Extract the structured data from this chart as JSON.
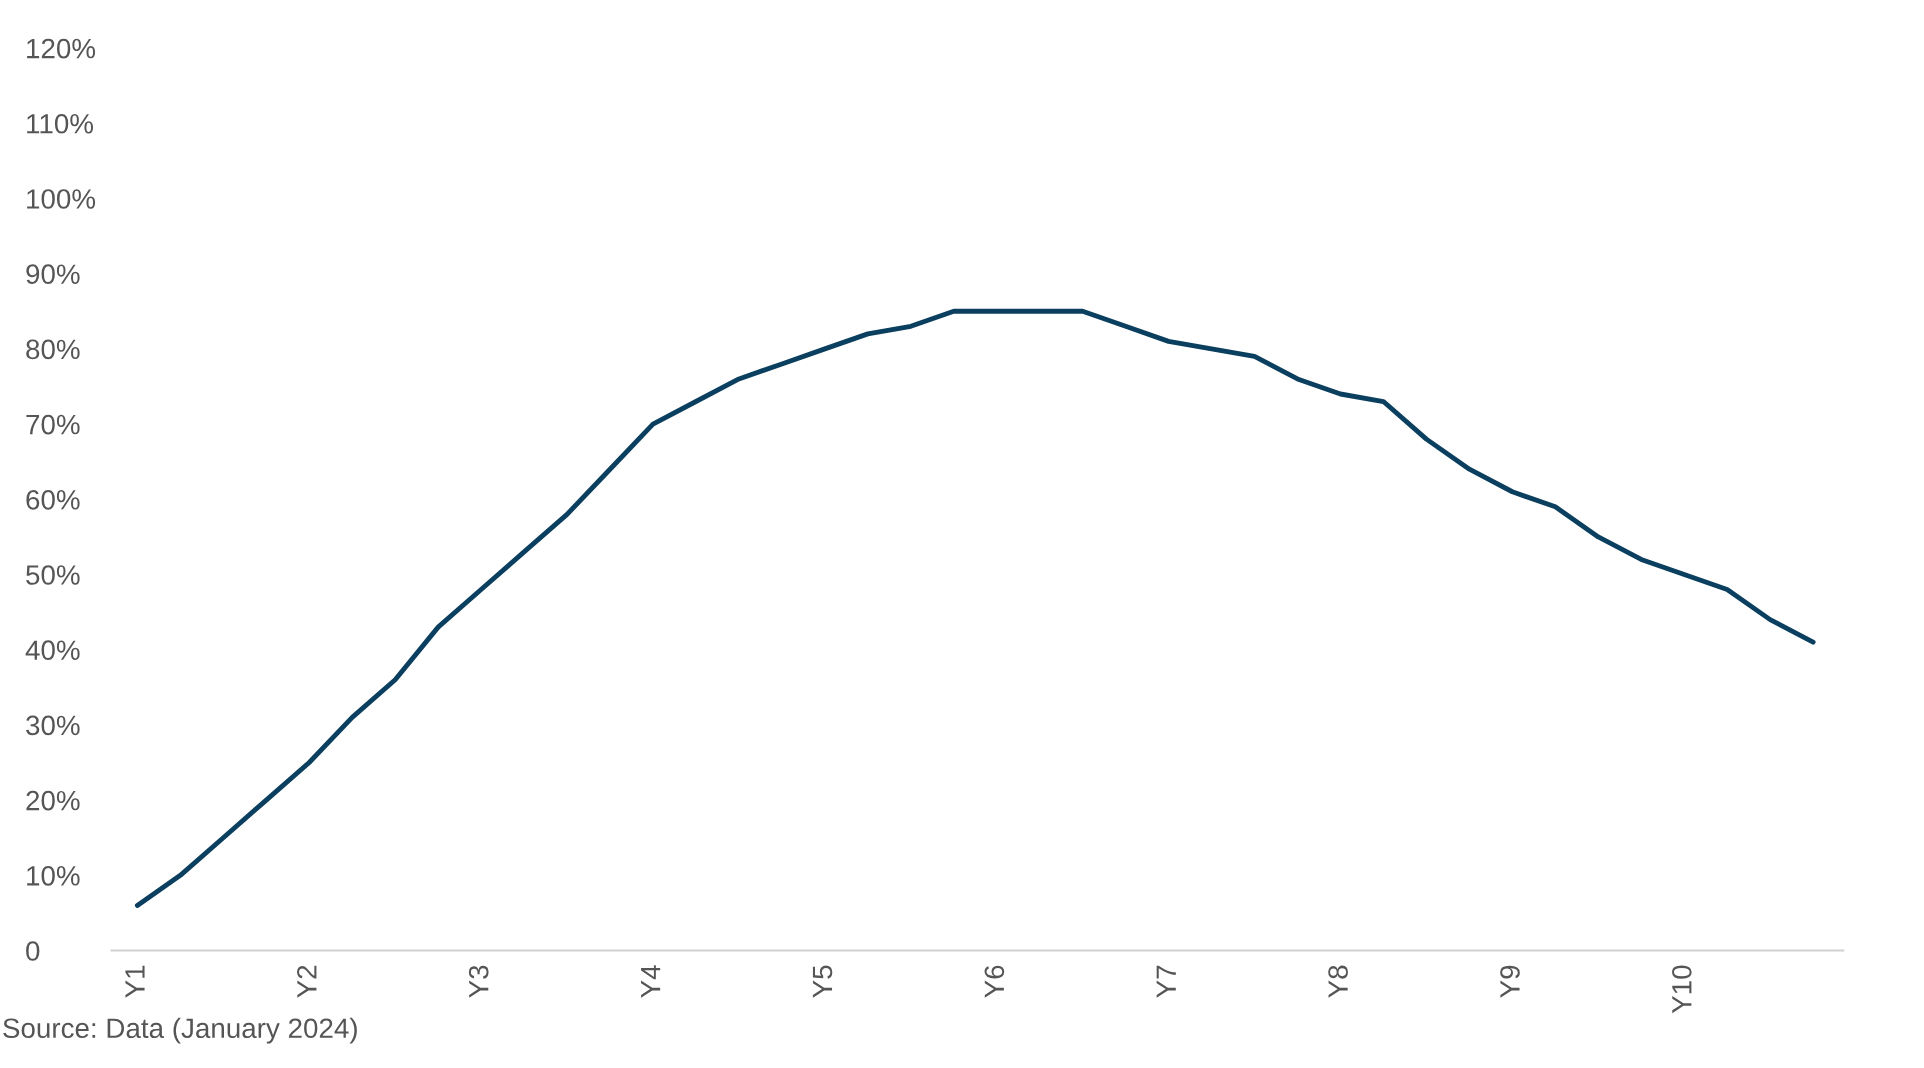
{
  "chart_data": {
    "type": "line",
    "annotations": [
      "Source: Data (January 2024)"
    ],
    "categories": [
      "Y1",
      null,
      null,
      null,
      "Y2",
      null,
      null,
      null,
      "Y3",
      null,
      null,
      null,
      "Y4",
      null,
      null,
      null,
      "Y5",
      null,
      null,
      null,
      "Y6",
      null,
      null,
      null,
      "Y7",
      null,
      null,
      null,
      "Y8",
      null,
      null,
      null,
      "Y9",
      null,
      null,
      null,
      "Y10",
      null,
      null,
      null
    ],
    "series": [
      {
        "color": "#0b3f5f",
        "values": [
          6,
          10,
          15,
          20,
          25,
          31,
          36,
          43,
          48,
          53,
          58,
          64,
          70,
          73,
          76,
          78,
          80,
          82,
          83,
          85,
          85,
          85,
          85,
          83,
          81,
          80,
          79,
          76,
          74,
          73,
          68,
          64,
          61,
          59,
          55,
          52,
          50,
          48,
          44,
          41
        ]
      }
    ],
    "ylim": [
      0,
      120
    ],
    "yticks": [
      {
        "value": 0,
        "label": "0"
      },
      {
        "value": 10,
        "label": "10%"
      },
      {
        "value": 20,
        "label": "20%"
      },
      {
        "value": 30,
        "label": "30%"
      },
      {
        "value": 40,
        "label": "40%"
      },
      {
        "value": 50,
        "label": "50%"
      },
      {
        "value": 60,
        "label": "60%"
      },
      {
        "value": 70,
        "label": "70%"
      },
      {
        "value": 80,
        "label": "80%"
      },
      {
        "value": 90,
        "label": "90%"
      },
      {
        "value": 100,
        "label": "100%"
      },
      {
        "value": 110,
        "label": "110%"
      },
      {
        "value": 120,
        "label": "120%"
      }
    ],
    "grid": false,
    "marker": "none",
    "line_style": "solid"
  }
}
